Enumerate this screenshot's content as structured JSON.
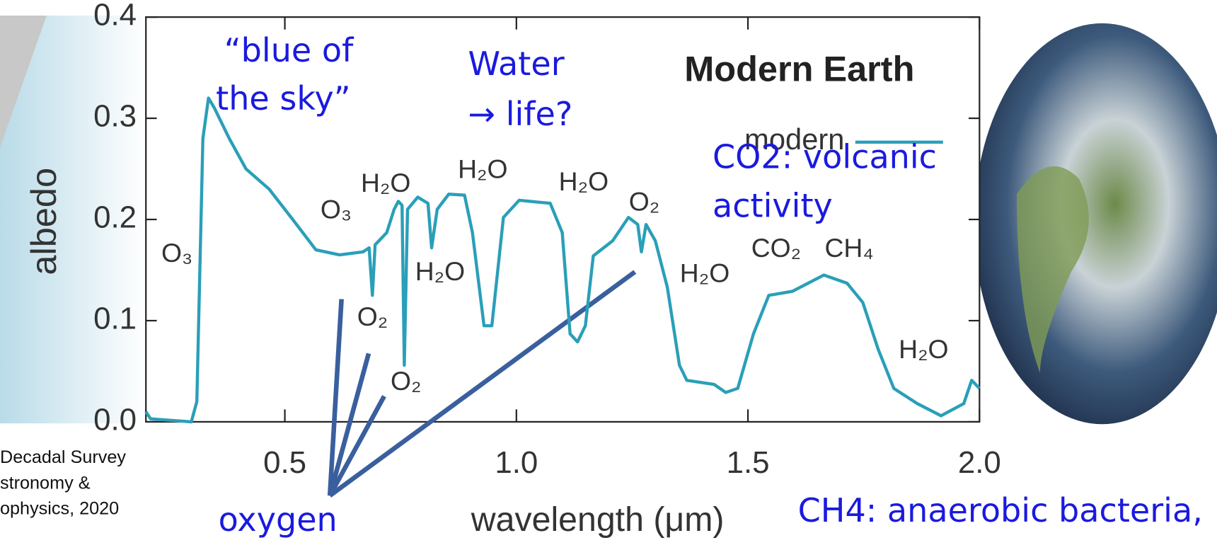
{
  "chart_data": {
    "type": "line",
    "title": "Modern Earth",
    "xlabel": "wavelength (μm)",
    "ylabel": "albedo",
    "x": [
      0.2,
      0.21,
      0.298,
      0.31,
      0.323,
      0.335,
      0.348,
      0.38,
      0.416,
      0.466,
      0.517,
      0.567,
      0.618,
      0.669,
      0.682,
      0.689,
      0.695,
      0.72,
      0.736,
      0.745,
      0.753,
      0.758,
      0.765,
      0.787,
      0.809,
      0.817,
      0.829,
      0.854,
      0.888,
      0.905,
      0.93,
      0.947,
      0.972,
      1.006,
      1.073,
      1.099,
      1.116,
      1.132,
      1.149,
      1.166,
      1.208,
      1.242,
      1.262,
      1.27,
      1.28,
      1.3,
      1.326,
      1.352,
      1.368,
      1.427,
      1.452,
      1.478,
      1.512,
      1.545,
      1.596,
      1.664,
      1.714,
      1.748,
      1.781,
      1.815,
      1.866,
      1.917,
      1.966,
      1.983,
      2.0
    ],
    "series": [
      {
        "name": "modern",
        "color": "#2a9fb8",
        "values": [
          0.01,
          0.003,
          0.0,
          0.02,
          0.28,
          0.32,
          0.31,
          0.28,
          0.25,
          0.23,
          0.2,
          0.17,
          0.165,
          0.168,
          0.172,
          0.125,
          0.175,
          0.187,
          0.21,
          0.218,
          0.214,
          0.056,
          0.21,
          0.222,
          0.216,
          0.172,
          0.21,
          0.225,
          0.224,
          0.187,
          0.095,
          0.095,
          0.202,
          0.219,
          0.216,
          0.187,
          0.087,
          0.079,
          0.095,
          0.164,
          0.179,
          0.202,
          0.195,
          0.168,
          0.195,
          0.179,
          0.133,
          0.056,
          0.041,
          0.037,
          0.029,
          0.033,
          0.087,
          0.125,
          0.129,
          0.145,
          0.137,
          0.118,
          0.072,
          0.033,
          0.018,
          0.006,
          0.018,
          0.041,
          0.033
        ]
      }
    ],
    "xlim": [
      0.2,
      2.0
    ],
    "ylim": [
      0,
      0.4
    ],
    "xticks": [
      0.5,
      {
        "value": 1,
        "label": "1.0"
      },
      1.5,
      {
        "value": 2,
        "label": "2.0"
      }
    ],
    "yticks": [
      {
        "value": 0,
        "label": "0.0"
      },
      0.1,
      0.2,
      0.3,
      0.4
    ],
    "molecule_labels": [
      "O₃",
      "O₃",
      "H₂O",
      "H₂O",
      "H₂O",
      "H₂O",
      "O₂",
      "O₂",
      "O₂",
      "H₂O",
      "CO₂",
      "CH₄",
      "H₂O"
    ],
    "annotations": [
      "“blue of",
      "the sky”",
      "Water",
      "→ life?",
      "CO2: volcanic",
      "activity",
      "oxygen",
      "CH4: anaerobic bacteria,"
    ],
    "source": [
      "Decadal Survey",
      "stronomy &",
      "ophysics, 2020"
    ]
  }
}
